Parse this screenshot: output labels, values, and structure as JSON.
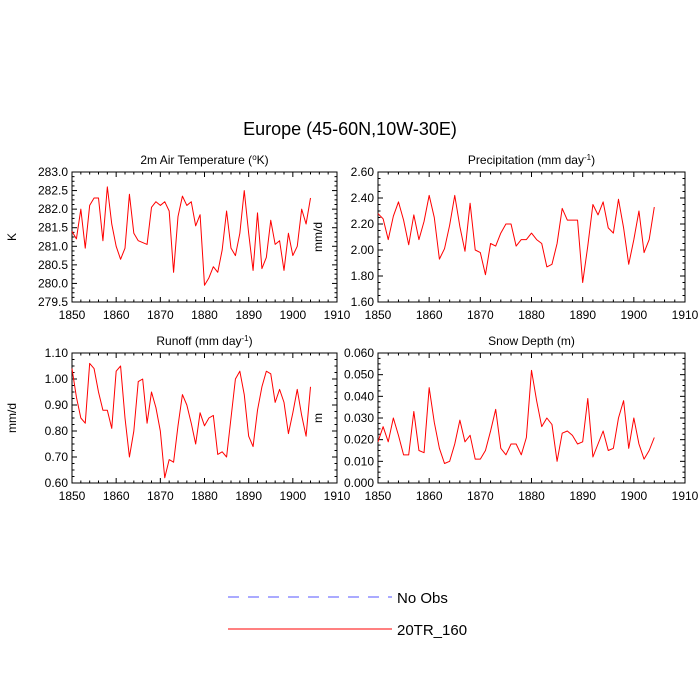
{
  "figure": {
    "title": "Europe (45-60N,10W-30E)"
  },
  "legend": {
    "placement": "bottom-center",
    "entries": [
      {
        "label": "No Obs",
        "color": "#5555ff",
        "dash": true
      },
      {
        "label": "20TR_160",
        "color": "#ff0000",
        "dash": false
      }
    ]
  },
  "chart_data": [
    {
      "type": "line",
      "title": "2m Air Temperature (°K)",
      "title_parts": {
        "pre": "2m Air Temperature (",
        "sup": "o",
        "post": "K)"
      },
      "xlabel": "",
      "ylabel": "K",
      "xlim": [
        1850,
        1910
      ],
      "ylim": [
        279.5,
        283.0
      ],
      "xticks": [
        1850,
        1860,
        1870,
        1880,
        1890,
        1900,
        1910
      ],
      "yticks": [
        "279.5",
        "280.0",
        "280.5",
        "281.0",
        "281.5",
        "282.0",
        "282.5",
        "283.0"
      ],
      "x_start": 1850,
      "series": [
        {
          "name": "20TR_160",
          "color": "#ff0000",
          "values": [
            281.4,
            281.2,
            282.0,
            280.95,
            282.1,
            282.3,
            282.3,
            281.15,
            282.6,
            281.6,
            281.0,
            280.65,
            280.95,
            282.4,
            281.35,
            281.15,
            281.1,
            281.05,
            282.05,
            282.2,
            282.1,
            282.2,
            281.95,
            280.3,
            281.8,
            282.35,
            282.1,
            282.2,
            281.55,
            281.85,
            279.95,
            280.15,
            280.45,
            280.3,
            280.9,
            281.95,
            280.95,
            280.75,
            281.35,
            282.5,
            281.35,
            280.35,
            281.9,
            280.4,
            280.7,
            281.7,
            281.05,
            281.15,
            280.35,
            281.35,
            280.75,
            281.0,
            282.0,
            281.6,
            282.3
          ]
        }
      ]
    },
    {
      "type": "line",
      "title": "Precipitation (mm day-1)",
      "title_parts": {
        "pre": "Precipitation (mm day",
        "sup": "-1",
        "post": ")"
      },
      "xlabel": "",
      "ylabel": "mm/d",
      "xlim": [
        1850,
        1910
      ],
      "ylim": [
        1.6,
        2.6
      ],
      "xticks": [
        1850,
        1860,
        1870,
        1880,
        1890,
        1900,
        1910
      ],
      "yticks": [
        "1.60",
        "1.80",
        "2.00",
        "2.20",
        "2.40",
        "2.60"
      ],
      "x_start": 1850,
      "series": [
        {
          "name": "20TR_160",
          "color": "#ff0000",
          "values": [
            2.28,
            2.24,
            2.08,
            2.26,
            2.37,
            2.23,
            2.04,
            2.27,
            2.08,
            2.22,
            2.42,
            2.25,
            1.93,
            2.01,
            2.19,
            2.42,
            2.18,
            1.99,
            2.36,
            2.0,
            1.98,
            1.81,
            2.05,
            2.03,
            2.13,
            2.2,
            2.2,
            2.03,
            2.08,
            2.08,
            2.13,
            2.08,
            2.05,
            1.87,
            1.89,
            2.05,
            2.32,
            2.23,
            2.23,
            2.23,
            1.75,
            2.03,
            2.35,
            2.27,
            2.37,
            2.17,
            2.13,
            2.39,
            2.17,
            1.89,
            2.08,
            2.3,
            1.98,
            2.08,
            2.33
          ]
        }
      ]
    },
    {
      "type": "line",
      "title": "Runoff (mm day-1)",
      "title_parts": {
        "pre": "Runoff (mm day",
        "sup": "-1",
        "post": ")"
      },
      "xlabel": "",
      "ylabel": "mm/d",
      "xlim": [
        1850,
        1910
      ],
      "ylim": [
        0.6,
        1.1
      ],
      "xticks": [
        1850,
        1860,
        1870,
        1880,
        1890,
        1900,
        1910
      ],
      "yticks": [
        "0.60",
        "0.70",
        "0.80",
        "0.90",
        "1.00",
        "1.10"
      ],
      "x_start": 1850,
      "series": [
        {
          "name": "20TR_160",
          "color": "#ff0000",
          "values": [
            1.04,
            0.93,
            0.85,
            0.83,
            1.06,
            1.04,
            0.95,
            0.88,
            0.88,
            0.81,
            1.03,
            1.05,
            0.85,
            0.7,
            0.8,
            0.99,
            1.0,
            0.83,
            0.95,
            0.89,
            0.8,
            0.62,
            0.69,
            0.68,
            0.82,
            0.94,
            0.9,
            0.83,
            0.75,
            0.87,
            0.82,
            0.85,
            0.86,
            0.71,
            0.72,
            0.7,
            0.85,
            1.0,
            1.03,
            0.94,
            0.78,
            0.74,
            0.88,
            0.97,
            1.03,
            1.02,
            0.91,
            0.96,
            0.91,
            0.79,
            0.87,
            0.96,
            0.86,
            0.78,
            0.97
          ]
        }
      ]
    },
    {
      "type": "line",
      "title": "Snow Depth (m)",
      "title_parts": {
        "pre": "Snow Depth (m)",
        "sup": "",
        "post": ""
      },
      "xlabel": "",
      "ylabel": "m",
      "xlim": [
        1850,
        1910
      ],
      "ylim": [
        0.0,
        0.06
      ],
      "xticks": [
        1850,
        1860,
        1870,
        1880,
        1890,
        1900,
        1910
      ],
      "yticks": [
        "0.000",
        "0.010",
        "0.020",
        "0.030",
        "0.040",
        "0.050",
        "0.060"
      ],
      "x_start": 1850,
      "series": [
        {
          "name": "20TR_160",
          "color": "#ff0000",
          "values": [
            0.019,
            0.026,
            0.019,
            0.03,
            0.022,
            0.013,
            0.013,
            0.033,
            0.015,
            0.014,
            0.044,
            0.028,
            0.016,
            0.009,
            0.01,
            0.018,
            0.029,
            0.019,
            0.022,
            0.011,
            0.011,
            0.015,
            0.024,
            0.034,
            0.016,
            0.013,
            0.018,
            0.018,
            0.013,
            0.021,
            0.052,
            0.038,
            0.026,
            0.03,
            0.027,
            0.01,
            0.023,
            0.024,
            0.022,
            0.018,
            0.019,
            0.039,
            0.012,
            0.018,
            0.024,
            0.015,
            0.016,
            0.03,
            0.038,
            0.016,
            0.03,
            0.018,
            0.011,
            0.015,
            0.021
          ]
        }
      ]
    }
  ]
}
